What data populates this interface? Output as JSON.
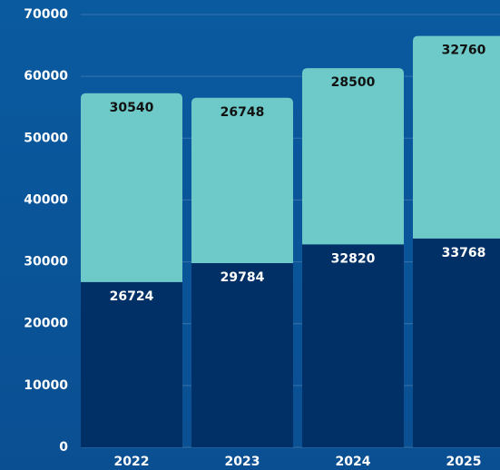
{
  "chart_data": {
    "type": "stacked-bar",
    "categories": [
      "2022",
      "2023",
      "2024",
      "2025"
    ],
    "series": [
      {
        "color": "#003066",
        "values": [
          26724,
          29784,
          32820,
          33768
        ]
      },
      {
        "color": "#6ecac8",
        "values": [
          30540,
          26748,
          28500,
          32760
        ]
      }
    ],
    "ylim": [
      0,
      70000
    ],
    "yticks": [
      0,
      10000,
      20000,
      30000,
      40000,
      50000,
      60000,
      70000
    ],
    "grid": true
  }
}
